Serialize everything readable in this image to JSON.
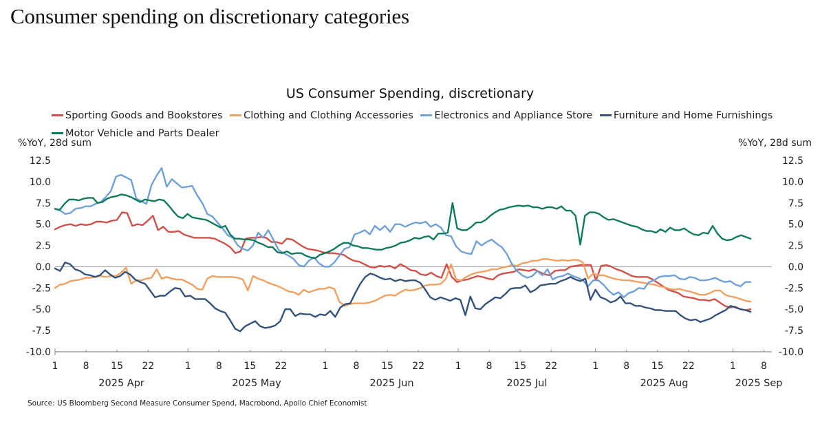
{
  "page": {
    "title": "Consumer spending on discretionary categories",
    "source": "Source: US Bloomberg Second Measure Consumer Spend, Macrobond, Apollo Chief Economist"
  },
  "chart_data": {
    "type": "line",
    "title": "US Consumer Spending, discretionary",
    "ylabel_left": "%YoY, 28d sum",
    "ylabel_right": "%YoY, 28d sum",
    "ylim": [
      -10.0,
      12.5
    ],
    "yticks": [
      "12.5",
      "10.0",
      "7.5",
      "5.0",
      "2.5",
      "0.0",
      "-2.5",
      "-5.0",
      "-7.5",
      "-10.0"
    ],
    "ytick_values": [
      12.5,
      10.0,
      7.5,
      5.0,
      2.5,
      0.0,
      -2.5,
      -5.0,
      -7.5,
      -10.0
    ],
    "zero_line": true,
    "grid": false,
    "legend_position": "top",
    "x_start": "2025-04-01",
    "x_end": "2025-09-08",
    "x_step_days": 2,
    "xticks": [
      {
        "day": 0,
        "label": "1"
      },
      {
        "day": 7,
        "label": "8"
      },
      {
        "day": 14,
        "label": "15"
      },
      {
        "day": 21,
        "label": "22"
      },
      {
        "day": 30,
        "label": "1"
      },
      {
        "day": 37,
        "label": "8"
      },
      {
        "day": 44,
        "label": "15"
      },
      {
        "day": 51,
        "label": "22"
      },
      {
        "day": 61,
        "label": "1"
      },
      {
        "day": 68,
        "label": "8"
      },
      {
        "day": 75,
        "label": "15"
      },
      {
        "day": 82,
        "label": "22"
      },
      {
        "day": 91,
        "label": "1"
      },
      {
        "day": 98,
        "label": "8"
      },
      {
        "day": 105,
        "label": "15"
      },
      {
        "day": 112,
        "label": "22"
      },
      {
        "day": 122,
        "label": "1"
      },
      {
        "day": 129,
        "label": "8"
      },
      {
        "day": 136,
        "label": "15"
      },
      {
        "day": 143,
        "label": "22"
      },
      {
        "day": 153,
        "label": "1"
      },
      {
        "day": 160,
        "label": "8"
      }
    ],
    "month_labels": [
      {
        "day": 15,
        "label": "2025 Apr"
      },
      {
        "day": 45.5,
        "label": "2025 May"
      },
      {
        "day": 76,
        "label": "2025 Jun"
      },
      {
        "day": 106.5,
        "label": "2025 Jul"
      },
      {
        "day": 137.5,
        "label": "2025 Aug"
      },
      {
        "day": 157,
        "label": "2025 Sep"
      }
    ],
    "series": [
      {
        "name": "Sporting Goods and Bookstores",
        "color": "#d0504a",
        "values": [
          4.4,
          4.7,
          4.9,
          5.0,
          4.8,
          5.0,
          4.9,
          5.0,
          5.3,
          5.3,
          5.2,
          5.4,
          5.5,
          6.4,
          6.3,
          4.8,
          5.0,
          4.9,
          5.4,
          6.0,
          4.3,
          4.7,
          4.1,
          4.1,
          4.2,
          3.8,
          3.6,
          3.4,
          3.4,
          3.4,
          3.4,
          3.3,
          3.0,
          2.7,
          2.3,
          1.6,
          1.8,
          3.3,
          3.4,
          3.4,
          3.5,
          3.4,
          2.9,
          2.9,
          2.7,
          3.3,
          3.2,
          2.8,
          2.4,
          2.1,
          2.0,
          1.9,
          1.7,
          1.6,
          1.6,
          1.5,
          1.4,
          1.0,
          0.7,
          0.6,
          0.3,
          0.0,
          -0.1,
          0.1,
          0.0,
          0.1,
          -0.2,
          0.3,
          0.0,
          -0.4,
          -0.5,
          -0.9,
          -1.0,
          -0.7,
          -1.1,
          -1.3,
          0.3,
          -1.2,
          -1.8,
          -1.6,
          -1.5,
          -1.3,
          -1.1,
          -1.2,
          -1.4,
          -1.5,
          -1.0,
          -0.8,
          -0.7,
          -0.6,
          -0.3,
          -0.4,
          -0.5,
          -0.3,
          -0.6,
          -0.9,
          -1.0,
          -0.5,
          -0.4,
          -0.4,
          0.0,
          0.1,
          0.2,
          0.2,
          0.2,
          -1.6,
          0.1,
          0.2,
          0.0,
          -0.3,
          -0.5,
          -0.8,
          -1.1,
          -1.2,
          -1.2,
          -1.2,
          -1.5,
          -1.9,
          -2.3,
          -2.7,
          -2.9,
          -3.1,
          -3.5,
          -3.6,
          -3.7,
          -3.9,
          -3.9,
          -4.0,
          -3.8,
          -4.2,
          -4.6,
          -4.8,
          -4.7,
          -5.0,
          -5.1,
          -5.0
        ],
        "x_step_note": "values sampled evenly from Apr 1 to Sep 5"
      },
      {
        "name": "Clothing and Clothing Accessories",
        "color": "#f0a060",
        "values": [
          -2.5,
          -2.1,
          -2.0,
          -1.7,
          -1.6,
          -1.5,
          -1.3,
          -1.3,
          -1.2,
          -1.1,
          -1.2,
          -1.1,
          -1.1,
          -0.7,
          -0.1,
          -2.0,
          -1.6,
          -1.6,
          -1.4,
          -1.3,
          -0.3,
          -1.4,
          -1.2,
          -1.4,
          -1.5,
          -1.5,
          -1.8,
          -2.1,
          -2.6,
          -2.7,
          -1.4,
          -1.1,
          -1.2,
          -1.2,
          -1.2,
          -1.2,
          -1.3,
          -1.5,
          -2.8,
          -1.1,
          -1.4,
          -1.6,
          -1.9,
          -2.1,
          -2.3,
          -2.6,
          -2.9,
          -3.0,
          -3.3,
          -2.7,
          -3.0,
          -2.8,
          -2.6,
          -2.6,
          -2.4,
          -2.6,
          -4.1,
          -4.6,
          -4.4,
          -4.3,
          -4.3,
          -4.3,
          -4.2,
          -4.0,
          -3.7,
          -3.4,
          -3.3,
          -3.4,
          -3.0,
          -2.7,
          -2.8,
          -2.7,
          -2.5,
          -2.2,
          -2.1,
          -2.1,
          -2.0,
          -1.4,
          0.3,
          -1.5,
          -1.6,
          -1.2,
          -0.9,
          -0.7,
          -0.6,
          -0.5,
          -0.3,
          -0.3,
          -0.1,
          0.0,
          0.2,
          0.1,
          0.4,
          0.5,
          0.7,
          0.7,
          0.9,
          0.9,
          0.8,
          0.7,
          0.8,
          0.7,
          0.8,
          0.8,
          0.5,
          -1.4,
          -0.8,
          -1.0,
          -1.0,
          -1.2,
          -1.4,
          -1.5,
          -1.6,
          -1.6,
          -1.7,
          -1.8,
          -1.9,
          -2.0,
          -2.1,
          -2.3,
          -2.4,
          -2.6,
          -2.7,
          -2.6,
          -2.8,
          -2.9,
          -3.1,
          -3.3,
          -3.3,
          -3.1,
          -2.8,
          -2.8,
          -3.3,
          -3.5,
          -3.6,
          -3.8,
          -4.0,
          -4.1
        ],
        "x_step_note": "values sampled evenly from Apr 1 to Sep 5"
      },
      {
        "name": "Electronics and Appliance Store",
        "color": "#6fa0d8",
        "values": [
          6.8,
          6.6,
          6.2,
          6.3,
          6.8,
          6.9,
          7.1,
          7.1,
          7.4,
          7.6,
          8.2,
          8.9,
          10.6,
          10.8,
          10.5,
          10.2,
          8.0,
          7.7,
          7.4,
          9.6,
          10.7,
          11.6,
          9.4,
          10.3,
          9.8,
          9.3,
          9.4,
          9.5,
          8.4,
          7.5,
          6.2,
          5.9,
          5.2,
          4.5,
          3.7,
          3.4,
          2.5,
          2.1,
          1.9,
          2.5,
          4.0,
          3.4,
          4.3,
          3.2,
          2.0,
          1.6,
          1.3,
          0.9,
          0.2,
          0.0,
          0.7,
          1.1,
          0.4,
          0.0,
          0.0,
          0.5,
          1.3,
          2.1,
          2.3,
          3.8,
          4.0,
          4.3,
          3.8,
          4.8,
          4.3,
          4.8,
          4.1,
          5.0,
          5.0,
          4.7,
          5.0,
          5.2,
          5.1,
          5.3,
          4.7,
          5.0,
          4.6,
          3.7,
          3.6,
          2.4,
          1.8,
          1.6,
          1.5,
          3.0,
          2.5,
          2.9,
          3.2,
          2.7,
          2.3,
          1.5,
          0.3,
          -0.5,
          -1.0,
          -1.3,
          -1.1,
          -0.5,
          -1.0,
          -0.3,
          -1.5,
          -1.2,
          -1.1,
          -0.8,
          -1.1,
          -1.3,
          -1.6,
          -2.3,
          -1.6,
          -1.6,
          -2.1,
          -2.8,
          -3.3,
          -3.0,
          -3.6,
          -3.1,
          -2.9,
          -2.5,
          -2.6,
          -1.8,
          -1.6,
          -1.2,
          -1.1,
          -1.1,
          -1.0,
          -1.4,
          -1.5,
          -1.2,
          -1.3,
          -1.6,
          -1.6,
          -1.5,
          -1.3,
          -1.6,
          -1.8,
          -1.7,
          -2.1,
          -2.3,
          -1.8,
          -1.8
        ],
        "x_step_note": "values sampled evenly from Apr 1 to Sep 5"
      },
      {
        "name": "Furniture and Home Furnishings",
        "color": "#34527a",
        "values": [
          -0.2,
          -0.5,
          0.5,
          0.3,
          -0.3,
          -0.5,
          -0.9,
          -1.0,
          -1.2,
          -1.0,
          -0.4,
          -0.9,
          -1.3,
          -1.1,
          -0.6,
          -0.9,
          -1.5,
          -1.8,
          -2.0,
          -2.8,
          -3.6,
          -3.4,
          -3.4,
          -2.9,
          -2.5,
          -2.6,
          -3.5,
          -3.4,
          -3.8,
          -3.8,
          -3.8,
          -4.3,
          -4.9,
          -5.2,
          -5.4,
          -6.3,
          -7.3,
          -7.6,
          -7.0,
          -6.7,
          -6.4,
          -7.0,
          -7.2,
          -7.1,
          -6.9,
          -6.4,
          -5.0,
          -5.0,
          -5.8,
          -5.5,
          -5.6,
          -5.6,
          -5.9,
          -5.6,
          -5.7,
          -5.2,
          -5.9,
          -4.8,
          -4.4,
          -4.3,
          -3.1,
          -2.0,
          -1.2,
          -0.8,
          -1.0,
          -1.3,
          -1.5,
          -1.4,
          -1.7,
          -1.5,
          -1.7,
          -1.6,
          -1.6,
          -1.9,
          -2.7,
          -3.6,
          -3.9,
          -3.6,
          -3.8,
          -4.0,
          -3.7,
          -3.9,
          -5.7,
          -3.5,
          -4.9,
          -5.0,
          -4.4,
          -4.0,
          -3.6,
          -3.7,
          -3.2,
          -2.6,
          -2.5,
          -2.5,
          -2.2,
          -3.0,
          -2.7,
          -2.2,
          -2.1,
          -2.0,
          -2.0,
          -1.7,
          -1.5,
          -1.2,
          -1.5,
          -1.7,
          -1.4,
          -3.9,
          -2.7,
          -3.6,
          -3.8,
          -4.2,
          -4.0,
          -3.5,
          -4.3,
          -4.3,
          -4.6,
          -4.6,
          -4.8,
          -4.9,
          -5.1,
          -5.1,
          -5.2,
          -5.2,
          -5.2,
          -5.7,
          -6.1,
          -6.3,
          -6.2,
          -6.5,
          -6.3,
          -6.1,
          -5.7,
          -5.4,
          -5.1,
          -4.6,
          -4.8,
          -5.0,
          -5.1,
          -5.3
        ],
        "x_step_note": "values sampled evenly from Apr 1 to Sep 5"
      },
      {
        "name": "Motor Vehicle and Parts Dealer",
        "color": "#0f7a5c",
        "values": [
          6.8,
          6.7,
          7.4,
          7.9,
          7.9,
          7.8,
          8.0,
          8.1,
          8.1,
          7.5,
          7.6,
          8.0,
          8.2,
          8.3,
          8.5,
          8.4,
          8.2,
          7.9,
          7.6,
          7.9,
          7.8,
          7.7,
          7.9,
          7.8,
          7.2,
          6.5,
          5.9,
          5.7,
          6.2,
          5.8,
          5.7,
          5.6,
          5.5,
          5.2,
          4.9,
          4.6,
          4.8,
          3.8,
          3.3,
          3.3,
          3.2,
          3.2,
          3.1,
          2.8,
          2.6,
          2.3,
          2.3,
          1.7,
          1.6,
          1.8,
          1.5,
          1.6,
          1.6,
          1.3,
          1.1,
          1.0,
          1.4,
          1.6,
          1.8,
          2.1,
          2.5,
          2.8,
          2.8,
          2.5,
          2.4,
          2.2,
          2.2,
          2.1,
          2.0,
          2.0,
          2.2,
          2.3,
          2.5,
          2.8,
          2.9,
          3.1,
          3.4,
          3.3,
          3.5,
          3.6,
          3.2,
          3.9,
          3.9,
          4.0,
          7.5,
          4.5,
          4.3,
          4.3,
          4.7,
          5.2,
          5.2,
          5.5,
          6.0,
          6.4,
          6.7,
          6.8,
          7.0,
          7.1,
          7.2,
          7.1,
          7.2,
          7.0,
          7.0,
          6.8,
          7.0,
          7.0,
          6.8,
          7.1,
          6.6,
          6.6,
          6.0,
          2.6,
          6.0,
          6.4,
          6.4,
          6.2,
          5.8,
          5.5,
          5.6,
          5.4,
          5.2,
          5.0,
          4.8,
          4.7,
          4.4,
          4.2,
          4.2,
          4.0,
          4.4,
          4.1,
          4.6,
          4.3,
          4.3,
          4.5,
          4.1,
          3.8,
          3.7,
          4.0,
          3.9,
          4.8,
          3.9,
          3.3,
          3.1,
          3.2,
          3.5,
          3.7,
          3.5,
          3.3
        ],
        "x_step_note": "values sampled evenly from Apr 1 to Sep 5"
      }
    ],
    "x_data_end_day": 157
  }
}
